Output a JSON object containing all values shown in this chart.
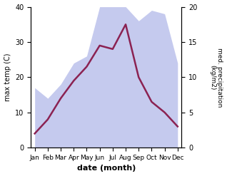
{
  "months": [
    "Jan",
    "Feb",
    "Mar",
    "Apr",
    "May",
    "Jun",
    "Jul",
    "Aug",
    "Sep",
    "Oct",
    "Nov",
    "Dec"
  ],
  "temperature": [
    4,
    8,
    14,
    19,
    23,
    29,
    28,
    35,
    20,
    13,
    10,
    6
  ],
  "precipitation": [
    8.5,
    7,
    9,
    12,
    13,
    20,
    20,
    20,
    18,
    19.5,
    19,
    12
  ],
  "temp_color": "#8B2252",
  "precip_color_fill": "#c5caee",
  "temp_ylim": [
    0,
    40
  ],
  "precip_ylim": [
    0,
    20
  ],
  "xlabel": "date (month)",
  "ylabel_left": "max temp (C)",
  "ylabel_right": "med. precipitation\n(kg/m2)",
  "temp_yticks": [
    0,
    10,
    20,
    30,
    40
  ],
  "precip_yticks": [
    0,
    5,
    10,
    15,
    20
  ],
  "background_color": "#ffffff"
}
